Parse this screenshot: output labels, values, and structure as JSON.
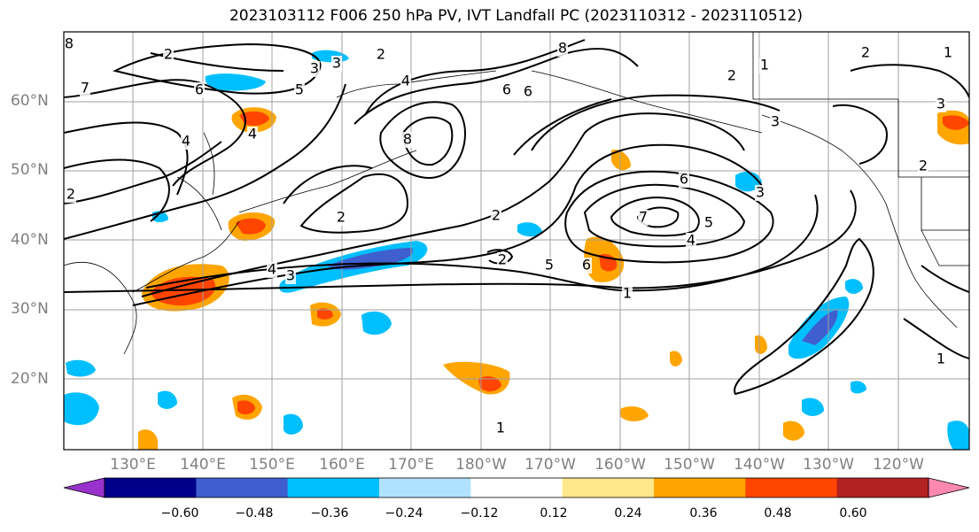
{
  "title": "2023103112 F006 250 hPa PV, IVT Landfall PC (2023110312 - 2023110512)",
  "lat_labels": [
    "60°N",
    "50°N",
    "40°N",
    "30°N",
    "20°N"
  ],
  "lon_labels": [
    "130°E",
    "140°E",
    "150°E",
    "160°E",
    "170°E",
    "180°W",
    "170°W",
    "160°W",
    "150°W",
    "140°W",
    "130°W",
    "120°W"
  ],
  "colorbar": {
    "ticks": [
      "−0.60",
      "−0.48",
      "−0.36",
      "−0.24",
      "−0.12",
      "0.12",
      "0.24",
      "0.36",
      "0.48",
      "0.60"
    ],
    "colors": [
      "#9932cc",
      "#00008b",
      "#3f5fcf",
      "#00bfff",
      "#b0e2ff",
      "#ffffff",
      "#ffe88a",
      "#ffa500",
      "#ff4500",
      "#b22222",
      "#ff88b0"
    ]
  },
  "contour_labels": [
    "8",
    "2",
    "3",
    "2",
    "7",
    "6",
    "5",
    "4",
    "4",
    "8",
    "6",
    "8",
    "2",
    "1",
    "2",
    "3",
    "6",
    "5",
    "2",
    "2",
    "2",
    "7",
    "6",
    "5",
    "4",
    "3",
    "4",
    "3",
    "1",
    "2",
    "1",
    "3",
    "1",
    "2",
    "4",
    "3",
    "1",
    "6"
  ],
  "colors": {
    "contour": "#000000",
    "grid": "#a0a0a0",
    "axis_label": "#808080"
  }
}
